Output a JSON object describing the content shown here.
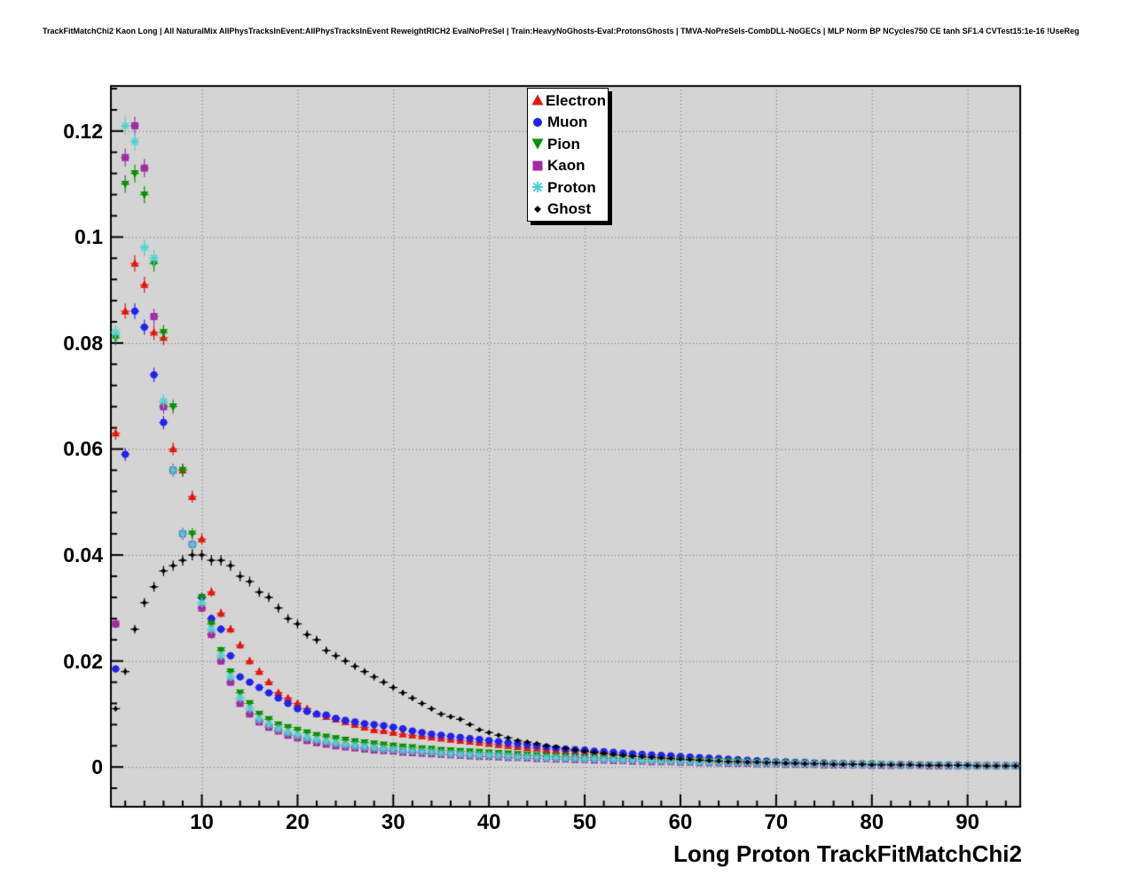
{
  "chart_data": {
    "type": "scatter",
    "title": "TrackFitMatchChi2 Kaon Long | All NaturalMix AllPhysTracksInEvent:AllPhysTracksInEvent ReweightRICH2 EvalNoPreSel | Train:HeavyNoGhosts-Eval:ProtonsGhosts | TMVA-NoPreSels-CombDLL-NoGECs | MLP Norm BP NCycles750 CE tanh SF1.4 CVTest15:1e-16 !UseReg",
    "xlabel": "Long Proton TrackFitMatchChi2",
    "ylabel": "",
    "xlim": [
      0.5,
      95.5
    ],
    "ylim": [
      -0.0075,
      0.1285
    ],
    "x_ticks": [
      10,
      20,
      30,
      40,
      50,
      60,
      70,
      80,
      90
    ],
    "x_tick_labels": [
      "10",
      "20",
      "30",
      "40",
      "50",
      "60",
      "70",
      "80",
      "90"
    ],
    "y_ticks": [
      0,
      0.02,
      0.04,
      0.06,
      0.08,
      0.1,
      0.12
    ],
    "y_tick_labels": [
      "0",
      "0.02",
      "0.04",
      "0.06",
      "0.08",
      "0.1",
      "0.12"
    ],
    "grid": true,
    "legend_position": "top-center",
    "background": "#d4d4d4",
    "x": [
      1,
      2,
      3,
      4,
      5,
      6,
      7,
      8,
      9,
      10,
      11,
      12,
      13,
      14,
      15,
      16,
      17,
      18,
      19,
      20,
      21,
      22,
      23,
      24,
      25,
      26,
      27,
      28,
      29,
      30,
      31,
      32,
      33,
      34,
      35,
      36,
      37,
      38,
      39,
      40,
      41,
      42,
      43,
      44,
      45,
      46,
      47,
      48,
      49,
      50,
      51,
      52,
      53,
      54,
      55,
      56,
      57,
      58,
      59,
      60,
      61,
      62,
      63,
      64,
      65,
      66,
      67,
      68,
      69,
      70,
      71,
      72,
      73,
      74,
      75,
      76,
      77,
      78,
      79,
      80,
      81,
      82,
      83,
      84,
      85,
      86,
      87,
      88,
      89,
      90,
      91,
      92,
      93,
      94,
      95
    ],
    "series": [
      {
        "name": "Electron",
        "color": "#e3170d",
        "marker": "triangle-up",
        "values": [
          0.063,
          0.086,
          0.095,
          0.091,
          0.082,
          0.081,
          0.06,
          0.056,
          0.051,
          0.043,
          0.033,
          0.029,
          0.026,
          0.023,
          0.02,
          0.018,
          0.016,
          0.014,
          0.013,
          0.012,
          0.011,
          0.01,
          0.0095,
          0.009,
          0.0085,
          0.008,
          0.0075,
          0.007,
          0.0068,
          0.0065,
          0.0062,
          0.006,
          0.0058,
          0.0056,
          0.0054,
          0.0052,
          0.005,
          0.0048,
          0.0046,
          0.0044,
          0.0042,
          0.004,
          0.0038,
          0.0036,
          0.0035,
          0.0033,
          0.0032,
          0.003,
          0.0029,
          0.0028,
          0.0026,
          0.0025,
          0.0024,
          0.0022,
          0.0021,
          0.002,
          0.0019,
          0.0018,
          0.0017,
          0.0016,
          0.0015,
          0.0014,
          0.0013,
          0.0012,
          0.0011,
          0.001,
          0.001,
          0.0009,
          0.0009,
          0.0008,
          0.0008,
          0.0007,
          0.0007,
          0.0006,
          0.0006,
          0.0006,
          0.0005,
          0.0005,
          0.0005,
          0.0005,
          0.0004,
          0.0004,
          0.0004,
          0.0004,
          0.0004,
          0.0003,
          0.0003,
          0.0003,
          0.0003,
          0.0003,
          0.0003,
          0.0003,
          0.0002,
          0.0002,
          0.0002
        ]
      },
      {
        "name": "Muon",
        "color": "#2222ee",
        "marker": "circle",
        "values": [
          0.0185,
          0.059,
          0.086,
          0.083,
          0.074,
          0.065,
          0.056,
          0.044,
          0.042,
          0.032,
          0.028,
          0.026,
          0.021,
          0.017,
          0.016,
          0.015,
          0.014,
          0.013,
          0.012,
          0.011,
          0.0105,
          0.01,
          0.0098,
          0.0092,
          0.0088,
          0.0085,
          0.0082,
          0.008,
          0.0078,
          0.0075,
          0.0072,
          0.0068,
          0.0065,
          0.0062,
          0.006,
          0.0058,
          0.0056,
          0.0054,
          0.0052,
          0.005,
          0.0048,
          0.0046,
          0.0044,
          0.0042,
          0.004,
          0.0038,
          0.0036,
          0.0034,
          0.0033,
          0.0032,
          0.003,
          0.0029,
          0.0028,
          0.0026,
          0.0025,
          0.0024,
          0.0023,
          0.0022,
          0.0021,
          0.002,
          0.0019,
          0.0018,
          0.0017,
          0.0016,
          0.0015,
          0.0014,
          0.0013,
          0.0012,
          0.0011,
          0.001,
          0.001,
          0.0009,
          0.0009,
          0.0008,
          0.0008,
          0.0007,
          0.0007,
          0.0006,
          0.0006,
          0.0006,
          0.0005,
          0.0005,
          0.0005,
          0.0005,
          0.0004,
          0.0004,
          0.0004,
          0.0004,
          0.0004,
          0.0003,
          0.0003,
          0.0003,
          0.0003,
          0.0003,
          0.0003
        ]
      },
      {
        "name": "Pion",
        "color": "#089000",
        "marker": "triangle-down",
        "values": [
          0.081,
          0.11,
          0.112,
          0.108,
          0.095,
          0.082,
          0.068,
          0.056,
          0.044,
          0.032,
          0.027,
          0.022,
          0.018,
          0.014,
          0.012,
          0.01,
          0.009,
          0.008,
          0.0075,
          0.007,
          0.0065,
          0.006,
          0.0057,
          0.0054,
          0.0051,
          0.0048,
          0.0046,
          0.0044,
          0.0042,
          0.004,
          0.0038,
          0.0037,
          0.0035,
          0.0034,
          0.0032,
          0.0031,
          0.003,
          0.0029,
          0.0028,
          0.0027,
          0.0026,
          0.0025,
          0.0024,
          0.0023,
          0.0022,
          0.0021,
          0.002,
          0.002,
          0.0019,
          0.0018,
          0.0018,
          0.0017,
          0.0016,
          0.0016,
          0.0015,
          0.0015,
          0.0014,
          0.0014,
          0.0013,
          0.0013,
          0.0012,
          0.0012,
          0.0011,
          0.0011,
          0.001,
          0.001,
          0.0009,
          0.0009,
          0.0008,
          0.0008,
          0.0008,
          0.0007,
          0.0007,
          0.0007,
          0.0006,
          0.0006,
          0.0006,
          0.0005,
          0.0005,
          0.0005,
          0.0005,
          0.0004,
          0.0004,
          0.0004,
          0.0004,
          0.0004,
          0.0003,
          0.0003,
          0.0003,
          0.0003,
          0.0003,
          0.0003,
          0.0003,
          0.0002,
          0.0002
        ]
      },
      {
        "name": "Kaon",
        "color": "#a02ca0",
        "marker": "square",
        "values": [
          0.027,
          0.115,
          0.121,
          0.113,
          0.085,
          0.068,
          0.056,
          0.044,
          0.042,
          0.03,
          0.025,
          0.02,
          0.016,
          0.012,
          0.01,
          0.0085,
          0.0075,
          0.0068,
          0.006,
          0.0055,
          0.005,
          0.0046,
          0.0043,
          0.004,
          0.0038,
          0.0036,
          0.0034,
          0.0032,
          0.0031,
          0.003,
          0.0028,
          0.0027,
          0.0026,
          0.0025,
          0.0024,
          0.0023,
          0.0022,
          0.0021,
          0.002,
          0.002,
          0.0019,
          0.0018,
          0.0018,
          0.0017,
          0.0016,
          0.0016,
          0.0015,
          0.0015,
          0.0014,
          0.0014,
          0.0013,
          0.0013,
          0.0012,
          0.0012,
          0.0011,
          0.0011,
          0.001,
          0.001,
          0.001,
          0.0009,
          0.0009,
          0.0008,
          0.0008,
          0.0008,
          0.0007,
          0.0007,
          0.0007,
          0.0006,
          0.0006,
          0.0006,
          0.0005,
          0.0005,
          0.0005,
          0.0005,
          0.0004,
          0.0004,
          0.0004,
          0.0004,
          0.0004,
          0.0003,
          0.0003,
          0.0003,
          0.0003,
          0.0003,
          0.0003,
          0.0002,
          0.0002,
          0.0002,
          0.0002,
          0.0002,
          0.0002,
          0.0002,
          0.0002,
          0.0002,
          0.0002
        ]
      },
      {
        "name": "Proton",
        "color": "#4fd2d2",
        "marker": "star",
        "values": [
          0.082,
          0.121,
          0.118,
          0.098,
          0.096,
          0.069,
          0.056,
          0.044,
          0.042,
          0.031,
          0.026,
          0.021,
          0.017,
          0.013,
          0.011,
          0.009,
          0.008,
          0.0072,
          0.0065,
          0.006,
          0.0055,
          0.0051,
          0.0048,
          0.0045,
          0.0042,
          0.004,
          0.0038,
          0.0036,
          0.0034,
          0.0033,
          0.0031,
          0.003,
          0.0029,
          0.0028,
          0.0026,
          0.0025,
          0.0024,
          0.0023,
          0.0022,
          0.0022,
          0.0021,
          0.002,
          0.0019,
          0.0019,
          0.0018,
          0.0017,
          0.0017,
          0.0016,
          0.0016,
          0.0015,
          0.0015,
          0.0014,
          0.0014,
          0.0013,
          0.0013,
          0.0012,
          0.0012,
          0.0011,
          0.0011,
          0.001,
          0.001,
          0.0009,
          0.0009,
          0.0009,
          0.0008,
          0.0008,
          0.0008,
          0.0007,
          0.0007,
          0.0007,
          0.0006,
          0.0006,
          0.0006,
          0.0005,
          0.0005,
          0.0005,
          0.0005,
          0.0004,
          0.0004,
          0.0004,
          0.0004,
          0.0004,
          0.0003,
          0.0003,
          0.0003,
          0.0003,
          0.0003,
          0.0003,
          0.0002,
          0.0002,
          0.0002,
          0.0002,
          0.0002,
          0.0002,
          0.0002
        ]
      },
      {
        "name": "Ghost",
        "color": "#000000",
        "marker": "diamond",
        "values": [
          0.011,
          0.018,
          0.026,
          0.031,
          0.034,
          0.037,
          0.038,
          0.039,
          0.04,
          0.04,
          0.039,
          0.039,
          0.038,
          0.036,
          0.035,
          0.033,
          0.032,
          0.03,
          0.028,
          0.027,
          0.025,
          0.024,
          0.022,
          0.021,
          0.02,
          0.019,
          0.018,
          0.017,
          0.016,
          0.015,
          0.014,
          0.013,
          0.012,
          0.011,
          0.01,
          0.0095,
          0.009,
          0.008,
          0.007,
          0.0065,
          0.006,
          0.0055,
          0.005,
          0.0047,
          0.0044,
          0.004,
          0.0038,
          0.0035,
          0.0032,
          0.003,
          0.0028,
          0.0026,
          0.0024,
          0.0022,
          0.002,
          0.0019,
          0.0018,
          0.0017,
          0.0016,
          0.0015,
          0.0014,
          0.0013,
          0.0012,
          0.0011,
          0.001,
          0.001,
          0.0009,
          0.0009,
          0.0008,
          0.0008,
          0.0007,
          0.0007,
          0.0006,
          0.0006,
          0.0006,
          0.0005,
          0.0005,
          0.0005,
          0.0005,
          0.0004,
          0.0004,
          0.0004,
          0.0004,
          0.0004,
          0.0003,
          0.0003,
          0.0003,
          0.0003,
          0.0003,
          0.0003,
          0.0002,
          0.0002,
          0.0002,
          0.0002,
          0.0002
        ]
      }
    ]
  }
}
